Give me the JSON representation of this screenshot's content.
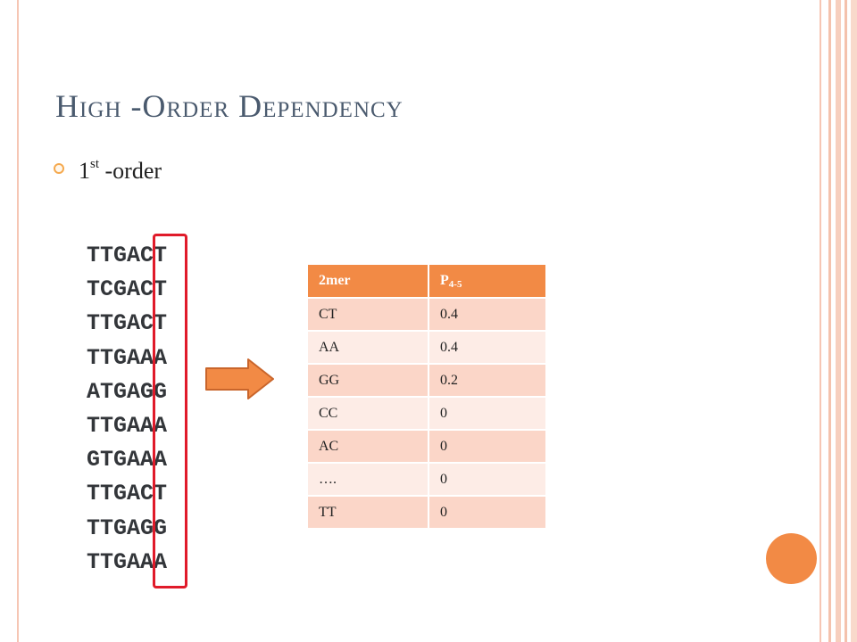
{
  "slide": {
    "title_initial_1": "H",
    "title_rest_1": "igh ",
    "title_initial_2": "-O",
    "title_rest_2": "rder ",
    "title_initial_3": "D",
    "title_rest_3": "ependency",
    "bullet": {
      "main": "1",
      "sup": "st",
      "rest": " -order"
    }
  },
  "sequences": [
    "TTGACT",
    "TCGACT",
    "TTGACT",
    "TTGAAA",
    "ATGAGG",
    "TTGAAA",
    "GTGAAA",
    "TTGACT",
    "TTGAGG",
    "TTGAAA"
  ],
  "table": {
    "header_col1": "2mer",
    "header_col2_main": "P",
    "header_col2_sub": "4-5",
    "rows": [
      [
        "CT",
        "0.4"
      ],
      [
        "AA",
        "0.4"
      ],
      [
        "GG",
        "0.2"
      ],
      [
        "CC",
        "0"
      ],
      [
        "AC",
        "0"
      ],
      [
        "….",
        "0"
      ],
      [
        "TT",
        "0"
      ]
    ]
  },
  "colors": {
    "accent": "#f28a45",
    "highlight": "#e01b2a",
    "title": "#4a5a6e"
  }
}
